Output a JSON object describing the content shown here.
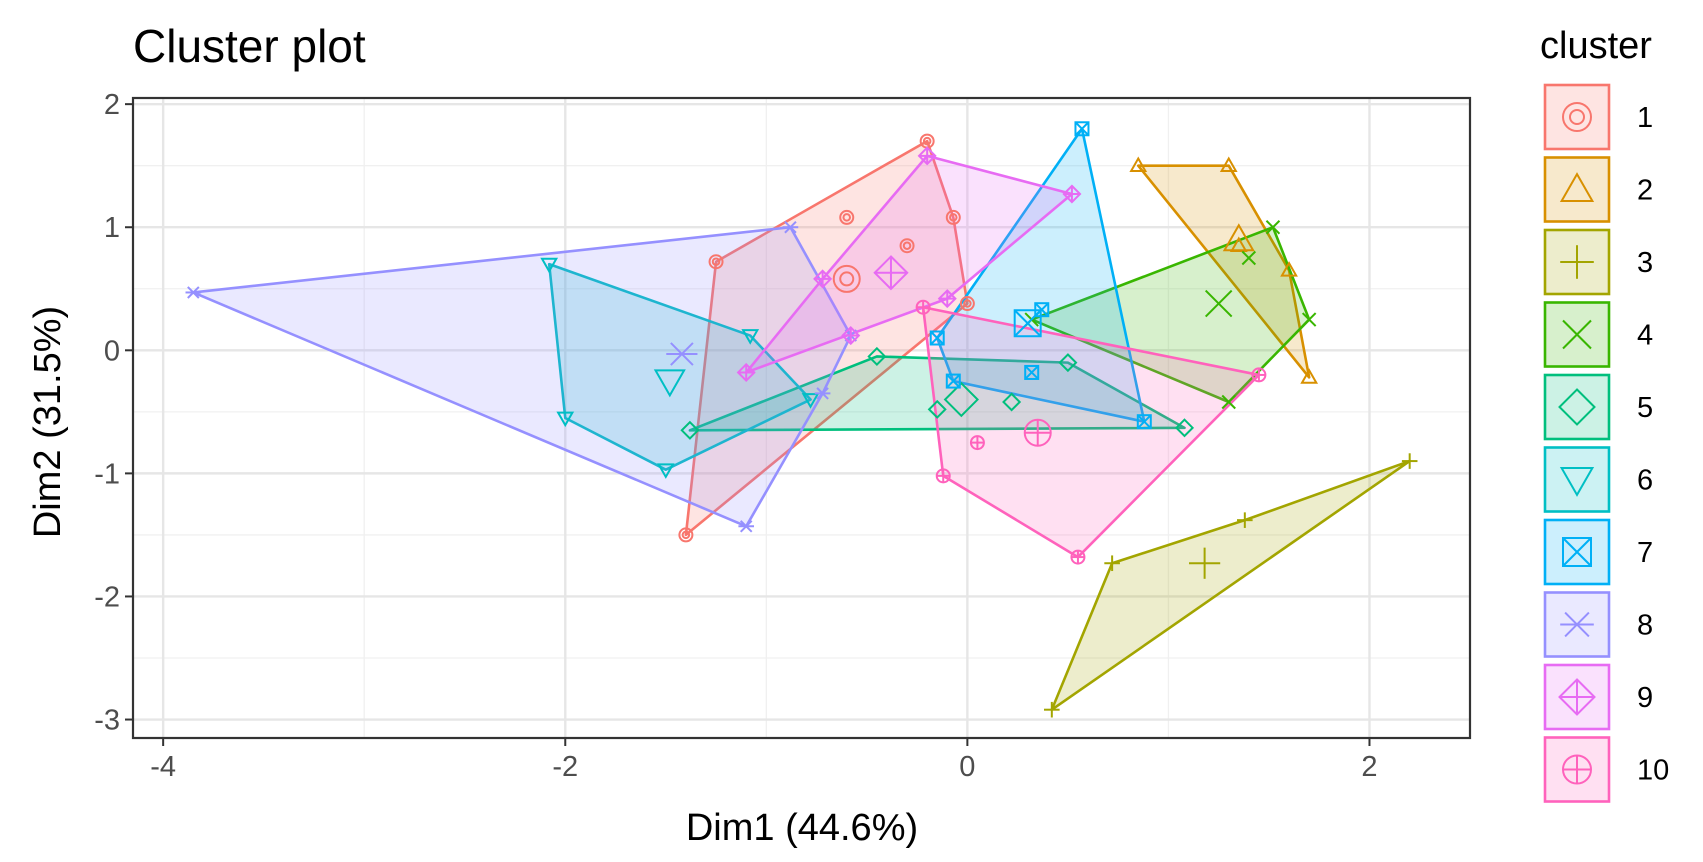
{
  "chart_data": {
    "type": "scatter",
    "title": "Cluster plot",
    "xlabel": "Dim1 (44.6%)",
    "ylabel": "Dim2 (31.5%)",
    "xlim": [
      -4.15,
      2.5
    ],
    "ylim": [
      -3.15,
      2.05
    ],
    "xticks": [
      -4,
      -2,
      0,
      2
    ],
    "yticks": [
      -3,
      -2,
      -1,
      0,
      1,
      2
    ],
    "grid": true,
    "legend": {
      "title": "cluster",
      "position": "right"
    },
    "series": [
      {
        "name": "1",
        "color": "#F8766D",
        "shape": "circle-ring",
        "points": [
          [
            -1.4,
            -1.5
          ],
          [
            -1.25,
            0.72
          ],
          [
            -0.2,
            1.7
          ],
          [
            -0.07,
            1.08
          ],
          [
            0,
            0.38
          ],
          [
            -0.6,
            1.08
          ],
          [
            -0.3,
            0.85
          ]
        ],
        "hull": [
          [
            -1.4,
            -1.5
          ],
          [
            -1.25,
            0.72
          ],
          [
            -0.2,
            1.7
          ],
          [
            -0.07,
            1.08
          ],
          [
            0,
            0.38
          ]
        ],
        "centroid": [
          -0.6,
          0.58
        ]
      },
      {
        "name": "2",
        "color": "#D89000",
        "shape": "triangle-up",
        "points": [
          [
            0.85,
            1.5
          ],
          [
            1.3,
            1.5
          ],
          [
            1.6,
            0.65
          ],
          [
            1.7,
            -0.22
          ],
          [
            1.35,
            0.85
          ]
        ],
        "hull": [
          [
            0.85,
            1.5
          ],
          [
            1.3,
            1.5
          ],
          [
            1.6,
            0.65
          ],
          [
            1.7,
            -0.22
          ]
        ],
        "centroid": [
          1.35,
          0.9
        ]
      },
      {
        "name": "3",
        "color": "#A3A500",
        "shape": "plus",
        "points": [
          [
            2.2,
            -0.9
          ],
          [
            1.38,
            -1.38
          ],
          [
            0.72,
            -1.73
          ],
          [
            0.42,
            -2.92
          ]
        ],
        "hull": [
          [
            2.2,
            -0.9
          ],
          [
            1.38,
            -1.38
          ],
          [
            0.72,
            -1.73
          ],
          [
            0.42,
            -2.92
          ]
        ],
        "centroid": [
          1.18,
          -1.73
        ]
      },
      {
        "name": "4",
        "color": "#39B600",
        "shape": "cross",
        "points": [
          [
            0.32,
            0.25
          ],
          [
            1.52,
            1.0
          ],
          [
            1.7,
            0.25
          ],
          [
            1.3,
            -0.42
          ],
          [
            1.4,
            0.75
          ]
        ],
        "hull": [
          [
            0.32,
            0.25
          ],
          [
            1.52,
            1.0
          ],
          [
            1.7,
            0.25
          ],
          [
            1.3,
            -0.42
          ]
        ],
        "centroid": [
          1.25,
          0.38
        ]
      },
      {
        "name": "5",
        "color": "#00BF7D",
        "shape": "diamond",
        "points": [
          [
            -1.38,
            -0.65
          ],
          [
            -0.45,
            -0.05
          ],
          [
            0.5,
            -0.1
          ],
          [
            1.08,
            -0.63
          ],
          [
            0.22,
            -0.42
          ],
          [
            -0.15,
            -0.48
          ]
        ],
        "hull": [
          [
            -1.38,
            -0.65
          ],
          [
            -0.45,
            -0.05
          ],
          [
            0.5,
            -0.1
          ],
          [
            1.08,
            -0.63
          ]
        ],
        "centroid": [
          -0.03,
          -0.4
        ]
      },
      {
        "name": "6",
        "color": "#00BFC4",
        "shape": "triangle-down",
        "points": [
          [
            -2.08,
            0.7
          ],
          [
            -1.08,
            0.12
          ],
          [
            -0.78,
            -0.4
          ],
          [
            -1.5,
            -0.97
          ],
          [
            -2.0,
            -0.55
          ]
        ],
        "hull": [
          [
            -2.08,
            0.7
          ],
          [
            -1.08,
            0.12
          ],
          [
            -0.78,
            -0.4
          ],
          [
            -1.5,
            -0.97
          ],
          [
            -2.0,
            -0.55
          ]
        ],
        "centroid": [
          -1.48,
          -0.25
        ]
      },
      {
        "name": "7",
        "color": "#00B0F6",
        "shape": "square-cross",
        "points": [
          [
            0.57,
            1.8
          ],
          [
            0.88,
            -0.58
          ],
          [
            -0.07,
            -0.25
          ],
          [
            -0.15,
            0.1
          ],
          [
            0.37,
            0.33
          ],
          [
            0.32,
            -0.18
          ]
        ],
        "hull": [
          [
            0.57,
            1.8
          ],
          [
            0.88,
            -0.58
          ],
          [
            -0.07,
            -0.25
          ],
          [
            -0.15,
            0.1
          ]
        ],
        "centroid": [
          0.3,
          0.22
        ]
      },
      {
        "name": "8",
        "color": "#9590FF",
        "shape": "asterisk",
        "points": [
          [
            -3.85,
            0.47
          ],
          [
            -0.88,
            1.0
          ],
          [
            -0.58,
            0.12
          ],
          [
            -0.72,
            -0.35
          ],
          [
            -1.1,
            -1.43
          ]
        ],
        "hull": [
          [
            -3.85,
            0.47
          ],
          [
            -0.88,
            1.0
          ],
          [
            -0.58,
            0.12
          ],
          [
            -0.72,
            -0.35
          ],
          [
            -1.1,
            -1.43
          ]
        ],
        "centroid": [
          -1.42,
          -0.03
        ]
      },
      {
        "name": "9",
        "color": "#E76BF3",
        "shape": "diamond-plus",
        "points": [
          [
            -0.2,
            1.58
          ],
          [
            0.52,
            1.27
          ],
          [
            -0.1,
            0.42
          ],
          [
            -0.58,
            0.12
          ],
          [
            -1.1,
            -0.18
          ],
          [
            -0.72,
            0.58
          ]
        ],
        "hull": [
          [
            -0.2,
            1.58
          ],
          [
            0.52,
            1.27
          ],
          [
            -0.1,
            0.42
          ],
          [
            -1.1,
            -0.18
          ],
          [
            -0.72,
            0.58
          ]
        ],
        "centroid": [
          -0.38,
          0.63
        ]
      },
      {
        "name": "10",
        "color": "#FF62BC",
        "shape": "circle-plus",
        "points": [
          [
            -0.22,
            0.35
          ],
          [
            1.45,
            -0.2
          ],
          [
            0.55,
            -1.68
          ],
          [
            -0.12,
            -1.02
          ],
          [
            0.05,
            -0.75
          ]
        ],
        "hull": [
          [
            -0.22,
            0.35
          ],
          [
            1.45,
            -0.2
          ],
          [
            0.55,
            -1.68
          ],
          [
            -0.12,
            -1.02
          ]
        ],
        "centroid": [
          0.35,
          -0.67
        ]
      }
    ]
  }
}
